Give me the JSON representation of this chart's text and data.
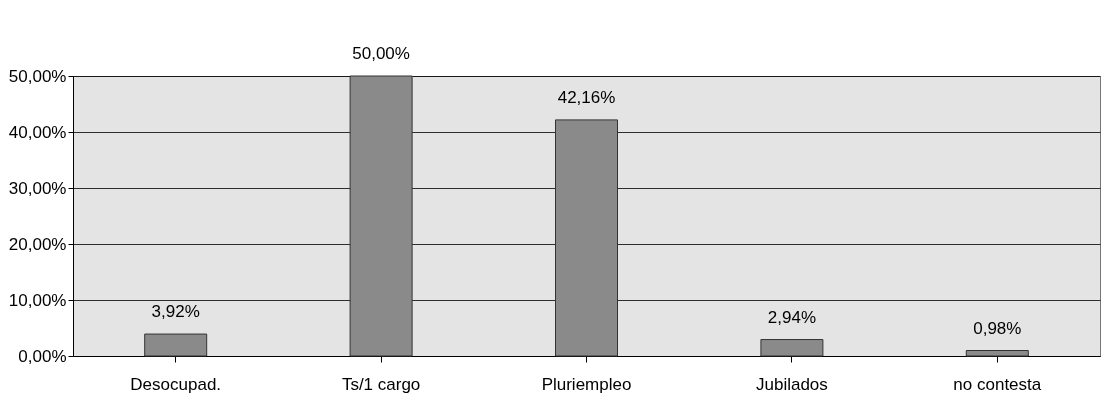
{
  "chart_data": {
    "type": "bar",
    "categories": [
      "Desocupad.",
      "Ts/1 cargo",
      "Pluriempleo",
      "Jubilados",
      "no contesta"
    ],
    "values": [
      3.92,
      50,
      42.16,
      2.94,
      0.98
    ],
    "value_labels": [
      "3,92%",
      "50,00%",
      "42,16%",
      "2,94%",
      "0,98%"
    ],
    "color": "#8a8a8a",
    "ylim": [
      0,
      50
    ],
    "yticks": [
      {
        "value": 0,
        "label": "0,00%"
      },
      {
        "value": 10,
        "label": "10,00%"
      },
      {
        "value": 20,
        "label": "20,00%"
      },
      {
        "value": 30,
        "label": "30,00%"
      },
      {
        "value": 40,
        "label": "40,00%"
      },
      {
        "value": 50,
        "label": "50,00%"
      }
    ],
    "grid": "y"
  }
}
